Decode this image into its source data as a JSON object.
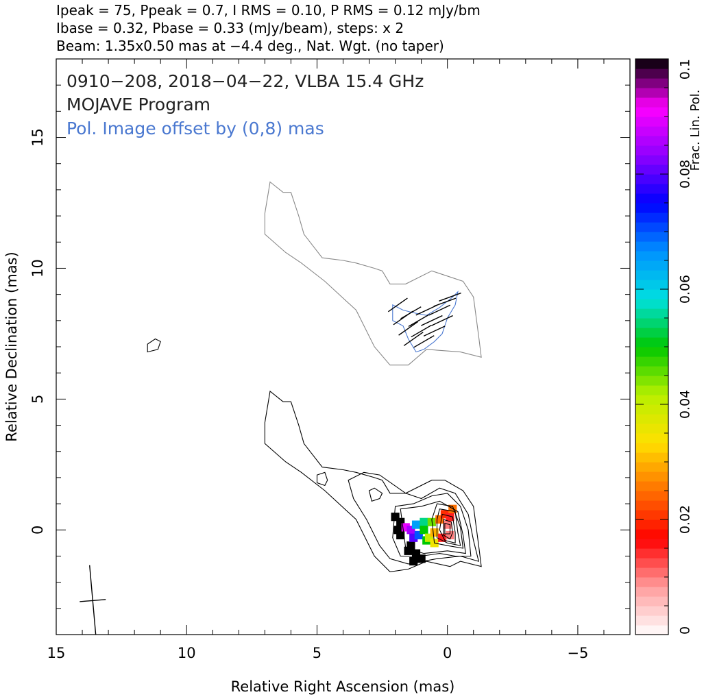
{
  "header": {
    "line1": "Ipeak = 75, Ppeak = 0.7, I RMS = 0.10, P RMS = 0.12 mJy/bm",
    "line2": "Ibase = 0.32, Pbase = 0.33 (mJy/beam), steps: x 2",
    "line3": "Beam: 1.35x0.50 mas at −4.4 deg., Nat. Wgt. (no taper)"
  },
  "annotations": {
    "source_line": "0910−208, 2018−04−22, VLBA 15.4 GHz",
    "program_line": "MOJAVE Program",
    "pol_offset_line": "Pol. Image offset by (0,8) mas"
  },
  "colors": {
    "total_intensity_contour": "#000000",
    "pol_contour": "#4a78d0",
    "pol_text": "#4a78d0",
    "jet_contour_upper": "#888888"
  },
  "chart_data": {
    "type": "contour",
    "xlabel": "Relative Right Ascension (mas)",
    "ylabel": "Relative Declination (mas)",
    "xlim": [
      15,
      -7
    ],
    "ylim": [
      -4,
      18
    ],
    "x_ticks": [
      15,
      10,
      5,
      0,
      -5
    ],
    "x_tick_labels": [
      "15",
      "10",
      "5",
      "0",
      "−5"
    ],
    "y_ticks": [
      0,
      5,
      10,
      15
    ],
    "y_tick_labels": [
      "0",
      "5",
      "10",
      "15"
    ],
    "colorbar": {
      "label": "Frac. Lin. Pol.",
      "range": [
        0,
        0.1
      ],
      "ticks": [
        0,
        0.02,
        0.04,
        0.06,
        0.08,
        0.1
      ],
      "tick_labels": [
        "0",
        "0.02",
        "0.04",
        "0.06",
        "0.08",
        "0.1"
      ],
      "colormap": [
        "#ffffff",
        "#ff9c9c",
        "#ff0000",
        "#ff7000",
        "#ffe000",
        "#b8f000",
        "#00c800",
        "#00e0e0",
        "#0090ff",
        "#0000ff",
        "#9000ff",
        "#ff00ff",
        "#000000"
      ]
    },
    "peak_intensity_mJy_per_beam": 75,
    "contour_base_mJy_per_beam": 0.32,
    "contour_step_factor": 2,
    "pol_image_offset_mas": [
      0,
      8
    ],
    "beam": {
      "major_mas": 1.35,
      "minor_mas": 0.5,
      "pa_deg": -4.4
    },
    "stokes_I_contours": [
      [
        [
          6.8,
          5.3
        ],
        [
          6.3,
          4.9
        ],
        [
          6.0,
          4.9
        ],
        [
          5.7,
          4.0
        ],
        [
          5.5,
          3.3
        ],
        [
          4.8,
          2.4
        ],
        [
          4.0,
          2.3
        ],
        [
          3.5,
          2.2
        ],
        [
          2.8,
          2.0
        ],
        [
          2.5,
          1.9
        ],
        [
          2.2,
          1.4
        ],
        [
          1.6,
          1.4
        ],
        [
          0.6,
          1.9
        ],
        [
          0.1,
          1.9
        ],
        [
          -0.6,
          1.5
        ],
        [
          -1.0,
          0.9
        ],
        [
          -1.2,
          -0.6
        ],
        [
          -1.3,
          -1.4
        ],
        [
          -0.5,
          -1.2
        ],
        [
          -0.1,
          -1.4
        ],
        [
          0.8,
          -1.2
        ],
        [
          1.5,
          -1.5
        ],
        [
          2.2,
          -1.6
        ],
        [
          2.8,
          -1.0
        ],
        [
          3.5,
          0.4
        ],
        [
          4.7,
          1.5
        ],
        [
          5.6,
          2.2
        ],
        [
          6.2,
          2.6
        ],
        [
          7.0,
          3.3
        ],
        [
          7.0,
          4.1
        ],
        [
          6.8,
          5.3
        ]
      ],
      [
        [
          3.8,
          1.9
        ],
        [
          3.2,
          2.2
        ],
        [
          2.6,
          2.1
        ],
        [
          1.6,
          1.4
        ],
        [
          1.0,
          1.2
        ],
        [
          0.3,
          1.6
        ],
        [
          -0.3,
          1.4
        ],
        [
          -0.8,
          0.6
        ],
        [
          -1.0,
          -0.4
        ],
        [
          -1.2,
          -1.2
        ],
        [
          -0.5,
          -1.0
        ],
        [
          0.4,
          -1.1
        ],
        [
          1.5,
          -1.3
        ],
        [
          2.2,
          -1.1
        ],
        [
          2.6,
          -0.6
        ],
        [
          3.1,
          0.4
        ],
        [
          3.6,
          1.2
        ],
        [
          3.8,
          1.9
        ]
      ],
      [
        [
          2.0,
          0.9
        ],
        [
          1.3,
          1.0
        ],
        [
          0.6,
          1.3
        ],
        [
          0.0,
          1.4
        ],
        [
          -0.5,
          0.9
        ],
        [
          -0.8,
          0.0
        ],
        [
          -0.9,
          -1.0
        ],
        [
          -0.3,
          -1.0
        ],
        [
          0.3,
          -0.9
        ],
        [
          1.0,
          -1.0
        ],
        [
          1.8,
          -1.0
        ],
        [
          2.1,
          -0.3
        ],
        [
          2.0,
          0.9
        ]
      ],
      [
        [
          1.8,
          0.8
        ],
        [
          1.0,
          0.9
        ],
        [
          0.3,
          1.1
        ],
        [
          -0.4,
          0.7
        ],
        [
          -0.6,
          -0.2
        ],
        [
          -0.7,
          -0.9
        ],
        [
          0.0,
          -0.8
        ],
        [
          0.9,
          -0.9
        ],
        [
          1.6,
          -0.7
        ],
        [
          1.8,
          0.8
        ]
      ],
      [
        [
          0.4,
          1.0
        ],
        [
          -0.2,
          0.9
        ],
        [
          -0.5,
          0.1
        ],
        [
          -0.6,
          -0.7
        ],
        [
          0.0,
          -0.6
        ],
        [
          0.5,
          -0.5
        ],
        [
          0.6,
          0.4
        ],
        [
          0.4,
          1.0
        ]
      ],
      [
        [
          0.3,
          0.8
        ],
        [
          -0.3,
          0.7
        ],
        [
          -0.4,
          -0.1
        ],
        [
          -0.5,
          -0.6
        ],
        [
          0.0,
          -0.5
        ],
        [
          0.4,
          -0.3
        ],
        [
          0.4,
          0.4
        ],
        [
          0.3,
          0.8
        ]
      ],
      [
        [
          0.2,
          0.6
        ],
        [
          -0.2,
          0.5
        ],
        [
          -0.3,
          -0.1
        ],
        [
          -0.3,
          -0.5
        ],
        [
          0.1,
          -0.4
        ],
        [
          0.3,
          0.0
        ],
        [
          0.2,
          0.6
        ]
      ],
      [
        [
          0.15,
          0.4
        ],
        [
          -0.15,
          0.3
        ],
        [
          -0.2,
          -0.1
        ],
        [
          -0.1,
          -0.35
        ],
        [
          0.15,
          -0.2
        ],
        [
          0.15,
          0.4
        ]
      ],
      [
        [
          0.1,
          0.25
        ],
        [
          -0.1,
          0.2
        ],
        [
          -0.1,
          -0.15
        ],
        [
          0.1,
          -0.15
        ],
        [
          0.1,
          0.25
        ]
      ],
      [
        [
          5.0,
          2.1
        ],
        [
          4.7,
          2.2
        ],
        [
          4.6,
          1.9
        ],
        [
          4.7,
          1.7
        ],
        [
          5.0,
          1.8
        ],
        [
          5.0,
          2.1
        ]
      ],
      [
        [
          3.0,
          1.5
        ],
        [
          2.8,
          1.6
        ],
        [
          2.5,
          1.4
        ],
        [
          2.6,
          1.2
        ],
        [
          2.9,
          1.1
        ],
        [
          3.0,
          1.5
        ]
      ],
      [
        [
          11.2,
          7.3
        ],
        [
          11.5,
          7.1
        ],
        [
          11.5,
          6.8
        ],
        [
          11.1,
          6.9
        ],
        [
          11.0,
          7.2
        ],
        [
          11.2,
          7.3
        ]
      ]
    ],
    "upper_jet_contour": [
      [
        [
          6.8,
          13.3
        ],
        [
          6.3,
          12.9
        ],
        [
          6.0,
          12.9
        ],
        [
          5.7,
          12.0
        ],
        [
          5.5,
          11.3
        ],
        [
          4.8,
          10.4
        ],
        [
          4.0,
          10.3
        ],
        [
          3.5,
          10.2
        ],
        [
          2.8,
          10.0
        ],
        [
          2.5,
          9.9
        ],
        [
          2.2,
          9.4
        ],
        [
          1.6,
          9.4
        ],
        [
          0.6,
          9.9
        ],
        [
          -0.6,
          9.5
        ],
        [
          -1.0,
          8.9
        ],
        [
          -1.2,
          7.4
        ],
        [
          -1.3,
          6.6
        ],
        [
          -0.5,
          6.8
        ],
        [
          0.8,
          6.9
        ],
        [
          1.5,
          6.3
        ],
        [
          2.2,
          6.3
        ],
        [
          2.8,
          7.0
        ],
        [
          3.5,
          8.4
        ],
        [
          4.7,
          9.5
        ],
        [
          5.6,
          10.2
        ],
        [
          6.2,
          10.6
        ],
        [
          7.0,
          11.3
        ],
        [
          7.0,
          12.1
        ],
        [
          6.8,
          13.3
        ]
      ]
    ],
    "pol_contours": [
      [
        [
          2.1,
          8.6
        ],
        [
          1.7,
          8.4
        ],
        [
          1.3,
          8.3
        ],
        [
          0.8,
          8.2
        ],
        [
          0.3,
          8.5
        ],
        [
          -0.2,
          8.9
        ],
        [
          -0.4,
          9.1
        ],
        [
          -0.3,
          8.6
        ],
        [
          0.0,
          8.1
        ],
        [
          0.2,
          7.5
        ],
        [
          0.5,
          7.2
        ],
        [
          0.9,
          6.9
        ],
        [
          1.2,
          6.8
        ],
        [
          1.5,
          7.3
        ],
        [
          1.7,
          7.8
        ],
        [
          2.1,
          8.0
        ],
        [
          2.1,
          8.6
        ]
      ]
    ],
    "pol_vectors": [
      {
        "x": 1.9,
        "y": 8.6,
        "angle_deg": -35
      },
      {
        "x": 1.7,
        "y": 8.1,
        "angle_deg": -35
      },
      {
        "x": 1.5,
        "y": 7.7,
        "angle_deg": -35
      },
      {
        "x": 1.3,
        "y": 7.3,
        "angle_deg": -35
      },
      {
        "x": 1.4,
        "y": 8.3,
        "angle_deg": -30
      },
      {
        "x": 1.1,
        "y": 8.0,
        "angle_deg": -30
      },
      {
        "x": 1.0,
        "y": 7.6,
        "angle_deg": -30
      },
      {
        "x": 0.9,
        "y": 7.2,
        "angle_deg": -30
      },
      {
        "x": 0.8,
        "y": 8.4,
        "angle_deg": -25
      },
      {
        "x": 0.6,
        "y": 8.0,
        "angle_deg": -25
      },
      {
        "x": 0.5,
        "y": 7.6,
        "angle_deg": -25
      },
      {
        "x": 0.3,
        "y": 8.4,
        "angle_deg": -25
      },
      {
        "x": 0.1,
        "y": 8.7,
        "angle_deg": -20
      },
      {
        "x": -0.1,
        "y": 8.9,
        "angle_deg": -20
      },
      {
        "x": 0.2,
        "y": 8.0,
        "angle_deg": -25
      }
    ],
    "frac_pol_pixels": [
      {
        "x": 2.0,
        "y": 0.5,
        "v": 0.1
      },
      {
        "x": 1.8,
        "y": 0.3,
        "v": 0.1
      },
      {
        "x": 1.9,
        "y": 0.0,
        "v": 0.1
      },
      {
        "x": 1.8,
        "y": -0.2,
        "v": 0.1
      },
      {
        "x": 1.4,
        "y": -0.6,
        "v": 0.1
      },
      {
        "x": 1.2,
        "y": -0.9,
        "v": 0.1
      },
      {
        "x": 1.0,
        "y": -1.1,
        "v": 0.1
      },
      {
        "x": 1.3,
        "y": -1.2,
        "v": 0.1
      },
      {
        "x": 1.5,
        "y": -0.8,
        "v": 0.1
      },
      {
        "x": 1.6,
        "y": 0.1,
        "v": 0.09
      },
      {
        "x": 1.4,
        "y": 0.0,
        "v": 0.085
      },
      {
        "x": 1.3,
        "y": -0.3,
        "v": 0.08
      },
      {
        "x": 1.1,
        "y": -0.2,
        "v": 0.07
      },
      {
        "x": 1.2,
        "y": 0.2,
        "v": 0.065
      },
      {
        "x": 0.9,
        "y": 0.3,
        "v": 0.055
      },
      {
        "x": 0.8,
        "y": -0.4,
        "v": 0.05
      },
      {
        "x": 0.9,
        "y": 0.0,
        "v": 0.05
      },
      {
        "x": 0.6,
        "y": 0.3,
        "v": 0.045
      },
      {
        "x": 0.7,
        "y": -0.3,
        "v": 0.04
      },
      {
        "x": 0.5,
        "y": -0.5,
        "v": 0.035
      },
      {
        "x": 0.5,
        "y": -0.1,
        "v": 0.03
      },
      {
        "x": 0.3,
        "y": 0.4,
        "v": 0.025
      },
      {
        "x": 0.1,
        "y": 0.6,
        "v": 0.02
      },
      {
        "x": 0.2,
        "y": -0.3,
        "v": 0.015
      },
      {
        "x": 0.0,
        "y": 0.2,
        "v": 0.01
      },
      {
        "x": -0.1,
        "y": 0.5,
        "v": 0.015
      },
      {
        "x": -0.1,
        "y": -0.2,
        "v": 0.01
      },
      {
        "x": -0.2,
        "y": 0.8,
        "v": 0.025
      }
    ]
  }
}
